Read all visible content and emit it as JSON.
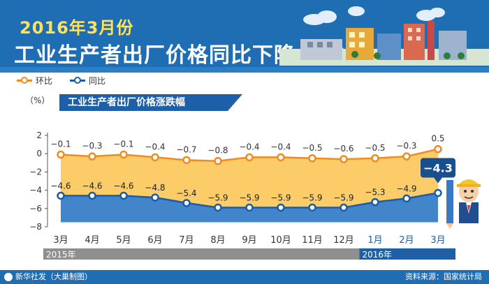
{
  "header": {
    "title_top": "2016年3月份",
    "title_main": "工业生产者出厂价格同比下降4.3%"
  },
  "legend": {
    "mom_label": "环比",
    "yoy_label": "同比"
  },
  "subtitle": "工业生产者出厂价格涨跌幅",
  "colors": {
    "header_bg": "#1f6db3",
    "mom_line": "#f08c1e",
    "mom_fill": "#fbc34d",
    "yoy_line": "#1a5ca6",
    "yoy_fill": "#2e78c4",
    "year_2015_bar": "#8f8f8f",
    "year_2016_bar": "#1e60a8",
    "callout_bg": "#1a4f8f"
  },
  "icons": [
    "factory-illustration-icon",
    "worker-mascot-icon",
    "xinhua-logo-icon",
    "cloud-icon"
  ],
  "chart_data": {
    "type": "area",
    "ylabel": "（%）",
    "ylim": [
      -8,
      2
    ],
    "yticks": [
      2,
      0,
      -2,
      -4,
      -6,
      -8
    ],
    "categories": [
      "3月",
      "4月",
      "5月",
      "6月",
      "7月",
      "8月",
      "9月",
      "10月",
      "11月",
      "12月",
      "1月",
      "2月",
      "3月"
    ],
    "year_groups": [
      {
        "label": "2015年",
        "count": 10
      },
      {
        "label": "2016年",
        "count": 3
      }
    ],
    "series": [
      {
        "name": "环比",
        "values": [
          -0.1,
          -0.3,
          -0.1,
          -0.4,
          -0.7,
          -0.8,
          -0.4,
          -0.4,
          -0.5,
          -0.6,
          -0.5,
          -0.3,
          0.5
        ],
        "labels": [
          "−0.1",
          "−0.3",
          "−0.1",
          "−0.4",
          "−0.7",
          "−0.8",
          "−0.4",
          "−0.4",
          "−0.5",
          "−0.6",
          "−0.5",
          "−0.3",
          "0.5"
        ]
      },
      {
        "name": "同比",
        "values": [
          -4.6,
          -4.6,
          -4.6,
          -4.8,
          -5.4,
          -5.9,
          -5.9,
          -5.9,
          -5.9,
          -5.9,
          -5.3,
          -4.9,
          -4.3
        ],
        "labels": [
          "−4.6",
          "−4.6",
          "−4.6",
          "−4.8",
          "−5.4",
          "−5.9",
          "−5.9",
          "−5.9",
          "−5.9",
          "−5.9",
          "−5.3",
          "−4.9",
          "−4.3"
        ]
      }
    ],
    "callout": "−4.3"
  },
  "footer": {
    "left": "新华社发（大巢制图）",
    "right": "资料来源：国家统计局"
  }
}
